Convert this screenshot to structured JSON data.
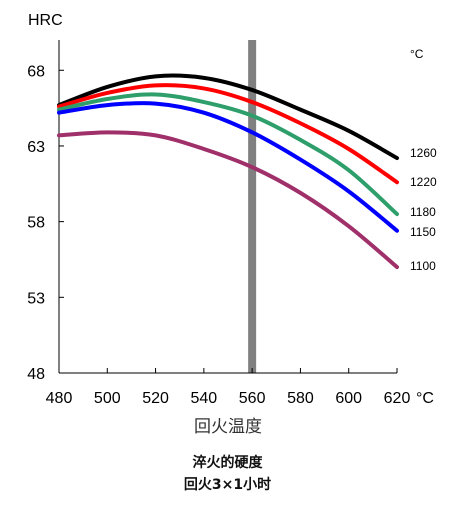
{
  "chart_data": {
    "type": "line",
    "ylabel": "HRC",
    "xlabel": "回火温度",
    "x_unit": "°C",
    "legend_unit": "°C",
    "xlim": [
      480,
      620
    ],
    "ylim": [
      48,
      70
    ],
    "x_ticks": [
      "480",
      "500",
      "520",
      "540",
      "560",
      "580",
      "600",
      "620"
    ],
    "y_ticks": [
      "68",
      "63",
      "58",
      "53",
      "48"
    ],
    "highlight_x": 560,
    "colors": {
      "highlight": "#808080",
      "axis": "#000000"
    },
    "series": [
      {
        "name": "1260",
        "color": "#000000",
        "x": [
          480,
          500,
          520,
          540,
          560,
          580,
          600,
          620
        ],
        "y": [
          65.7,
          66.9,
          67.6,
          67.5,
          66.7,
          65.4,
          64.0,
          62.2
        ]
      },
      {
        "name": "1220",
        "color": "#ff0000",
        "x": [
          480,
          500,
          520,
          540,
          560,
          580,
          600,
          620
        ],
        "y": [
          65.6,
          66.5,
          67.0,
          66.8,
          65.9,
          64.5,
          62.8,
          60.6
        ]
      },
      {
        "name": "1180",
        "color": "#2e9e6b",
        "x": [
          480,
          500,
          520,
          540,
          560,
          580,
          600,
          620
        ],
        "y": [
          65.4,
          66.1,
          66.4,
          65.9,
          65.0,
          63.4,
          61.4,
          58.5
        ]
      },
      {
        "name": "1150",
        "color": "#0000ff",
        "x": [
          480,
          500,
          520,
          540,
          560,
          580,
          600,
          620
        ],
        "y": [
          65.2,
          65.7,
          65.8,
          65.2,
          63.9,
          62.1,
          60.0,
          57.4
        ]
      },
      {
        "name": "1100",
        "color": "#a0306a",
        "x": [
          480,
          500,
          520,
          540,
          560,
          580,
          600,
          620
        ],
        "y": [
          63.7,
          63.9,
          63.7,
          62.8,
          61.6,
          59.9,
          57.7,
          55.0
        ]
      }
    ],
    "caption": [
      "淬火的硬度",
      "回火3×1小时"
    ],
    "grid": false
  }
}
